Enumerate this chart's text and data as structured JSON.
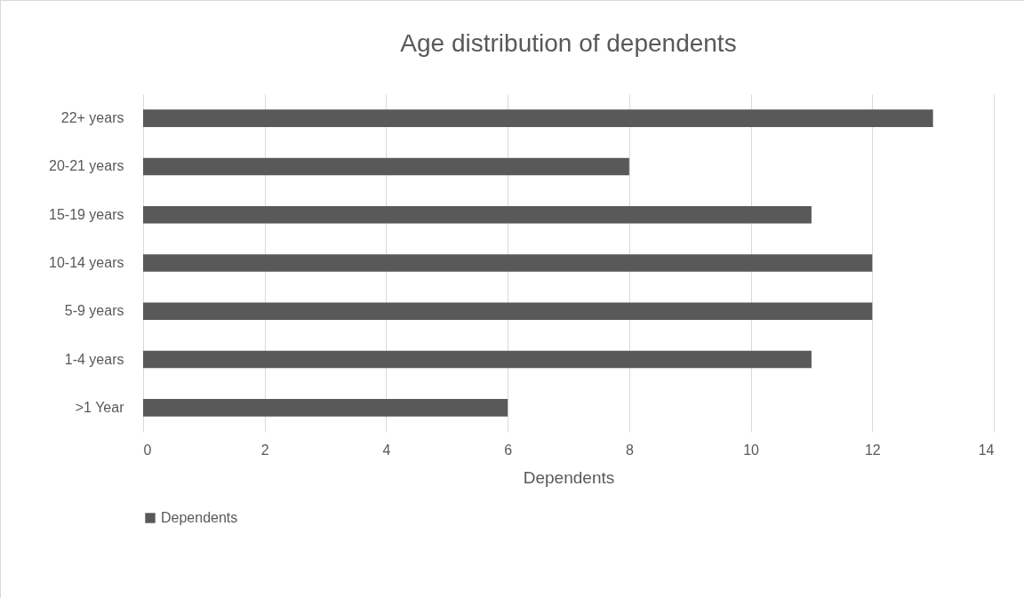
{
  "chart_data": {
    "type": "bar",
    "orientation": "horizontal",
    "title": "Age distribution of dependents",
    "xlabel": "Dependents",
    "categories": [
      "22+ years",
      "20-21 years",
      "15-19 years",
      "10-14 years",
      "5-9 years",
      "1-4 years",
      ">1 Year"
    ],
    "series": [
      {
        "name": "Dependents",
        "color": "#595959",
        "values": [
          13,
          8,
          11,
          12,
          12,
          11,
          6
        ]
      }
    ],
    "xlim": [
      0,
      14
    ],
    "xticks": [
      0,
      2,
      4,
      6,
      8,
      10,
      12,
      14
    ],
    "grid": "x",
    "legend": "bottom"
  }
}
